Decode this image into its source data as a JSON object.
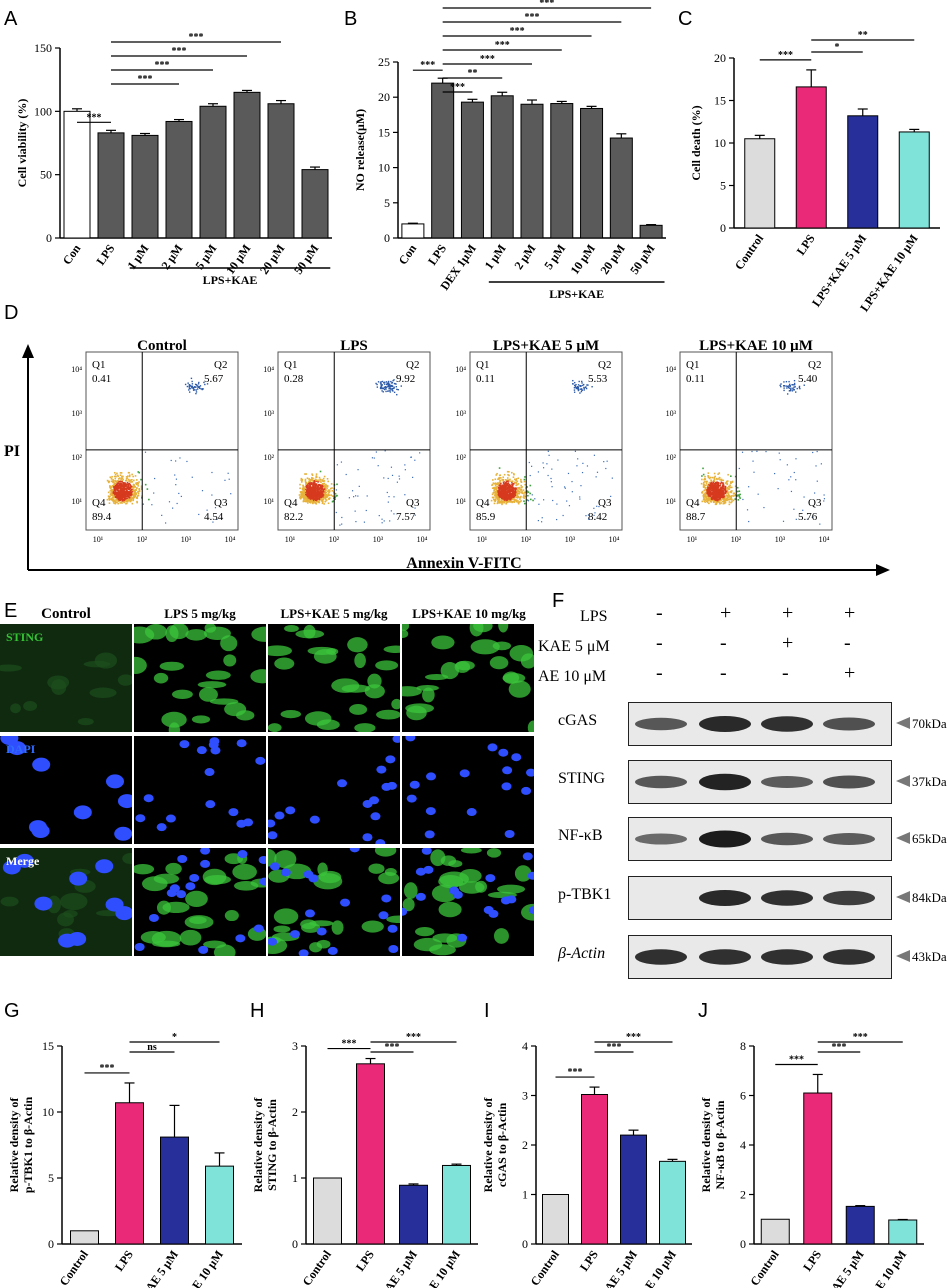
{
  "panel_letters": [
    "A",
    "B",
    "C",
    "D",
    "E",
    "F",
    "G",
    "H",
    "I",
    "J"
  ],
  "chart_data": [
    {
      "id": "A",
      "type": "bar",
      "categories": [
        "Con",
        "LPS",
        "1 μM",
        "2 μM",
        "5 μM",
        "10 μM",
        "20 μM",
        "50 μM"
      ],
      "values": [
        100,
        83,
        81,
        92,
        104,
        115,
        106,
        54
      ],
      "errors": [
        2,
        2,
        1.5,
        1.5,
        2,
        1.5,
        2.5,
        2
      ],
      "colors": [
        "#ffffff",
        "#5a5a5a",
        "#5a5a5a",
        "#5a5a5a",
        "#5a5a5a",
        "#5a5a5a",
        "#5a5a5a",
        "#5a5a5a"
      ],
      "ylabel": "Cell viability (%)",
      "ylim": [
        0,
        150
      ],
      "yticks": [
        0,
        50,
        100,
        150
      ],
      "group_label": "LPS+KAE",
      "sig": [
        {
          "from": 0,
          "to": 1,
          "label": "***"
        },
        {
          "from": 1,
          "to": 3,
          "label": "***"
        },
        {
          "from": 1,
          "to": 4,
          "label": "***"
        },
        {
          "from": 1,
          "to": 5,
          "label": "***"
        },
        {
          "from": 1,
          "to": 6,
          "label": "***"
        }
      ]
    },
    {
      "id": "B",
      "type": "bar",
      "categories": [
        "Con",
        "LPS",
        "DEX 1μM",
        "1 μM",
        "2 μM",
        "5 μM",
        "10 μM",
        "20 μM",
        "50 μM"
      ],
      "values": [
        2,
        22,
        19.3,
        20.2,
        19,
        19.1,
        18.4,
        14.2,
        1.8
      ],
      "errors": [
        0.1,
        0.7,
        0.4,
        0.5,
        0.6,
        0.3,
        0.3,
        0.6,
        0.1
      ],
      "colors": [
        "#ffffff",
        "#5a5a5a",
        "#5a5a5a",
        "#5a5a5a",
        "#5a5a5a",
        "#5a5a5a",
        "#5a5a5a",
        "#5a5a5a",
        "#5a5a5a"
      ],
      "ylabel": "NO release(μM)",
      "ylim": [
        0,
        25
      ],
      "yticks": [
        0,
        5,
        10,
        15,
        20,
        25
      ],
      "group_label": "LPS+KAE",
      "sig": [
        {
          "from": 0,
          "to": 1,
          "label": "***"
        },
        {
          "from": 1,
          "to": 2,
          "label": "***"
        },
        {
          "from": 1,
          "to": 3,
          "label": "**"
        },
        {
          "from": 1,
          "to": 4,
          "label": "***"
        },
        {
          "from": 1,
          "to": 5,
          "label": "***"
        },
        {
          "from": 1,
          "to": 6,
          "label": "***"
        },
        {
          "from": 1,
          "to": 7,
          "label": "***"
        },
        {
          "from": 1,
          "to": 8,
          "label": "***"
        }
      ]
    },
    {
      "id": "C",
      "type": "bar",
      "categories": [
        "Control",
        "LPS",
        "LPS+KAE 5 μM",
        "LPS+KAE 10 μM"
      ],
      "values": [
        10.5,
        16.6,
        13.2,
        11.3
      ],
      "errors": [
        0.4,
        2,
        0.8,
        0.3
      ],
      "colors": [
        "#dcdcdc",
        "#ea2a78",
        "#27309a",
        "#7fe3da"
      ],
      "ylabel": "Cell death (%)",
      "ylim": [
        0,
        20
      ],
      "yticks": [
        0,
        5,
        10,
        15,
        20
      ],
      "sig": [
        {
          "from": 0,
          "to": 1,
          "label": "***"
        },
        {
          "from": 1,
          "to": 2,
          "label": "*"
        },
        {
          "from": 1,
          "to": 3,
          "label": "**"
        }
      ]
    },
    {
      "id": "G",
      "type": "bar",
      "categories": [
        "Control",
        "LPS",
        "LPS+KAE 5 μM",
        "LPS+KAE 10 μM"
      ],
      "values": [
        1,
        10.7,
        8.1,
        5.9
      ],
      "errors": [
        0,
        1.5,
        2.4,
        1
      ],
      "colors": [
        "#dcdcdc",
        "#ea2a78",
        "#27309a",
        "#7fe3da"
      ],
      "ylabel": "Relative density of p-TBK1 to β-Actin",
      "ylim": [
        0,
        15
      ],
      "yticks": [
        0,
        5,
        10,
        15
      ],
      "sig": [
        {
          "from": 0,
          "to": 1,
          "label": "***"
        },
        {
          "from": 1,
          "to": 2,
          "label": "ns"
        },
        {
          "from": 1,
          "to": 3,
          "label": "*"
        }
      ]
    },
    {
      "id": "H",
      "type": "bar",
      "categories": [
        "Control",
        "LPS",
        "LPS+KAE 5 μM",
        "LPS+KAE 10 μM"
      ],
      "values": [
        1,
        2.73,
        0.89,
        1.19
      ],
      "errors": [
        0,
        0.08,
        0.02,
        0.02
      ],
      "colors": [
        "#dcdcdc",
        "#ea2a78",
        "#27309a",
        "#7fe3da"
      ],
      "ylabel": "Relative density of STING to β-Actin",
      "ylim": [
        0,
        3
      ],
      "yticks": [
        0,
        1,
        2,
        3
      ],
      "sig": [
        {
          "from": 0,
          "to": 1,
          "label": "***"
        },
        {
          "from": 1,
          "to": 2,
          "label": "***"
        },
        {
          "from": 1,
          "to": 3,
          "label": "***"
        }
      ]
    },
    {
      "id": "I",
      "type": "bar",
      "categories": [
        "Control",
        "LPS",
        "LPS+KAE 5 μM",
        "LPS+KAE 10 μM"
      ],
      "values": [
        1,
        3.02,
        2.2,
        1.67
      ],
      "errors": [
        0,
        0.15,
        0.1,
        0.04
      ],
      "colors": [
        "#dcdcdc",
        "#ea2a78",
        "#27309a",
        "#7fe3da"
      ],
      "ylabel": "Relative density of cGAS to β-Actin",
      "ylim": [
        0,
        4
      ],
      "yticks": [
        0,
        1,
        2,
        3,
        4
      ],
      "sig": [
        {
          "from": 0,
          "to": 1,
          "label": "***"
        },
        {
          "from": 1,
          "to": 2,
          "label": "***"
        },
        {
          "from": 1,
          "to": 3,
          "label": "***"
        }
      ]
    },
    {
      "id": "J",
      "type": "bar",
      "categories": [
        "Control",
        "LPS",
        "LPS+KAE 5 μM",
        "LPS+KAE 10 μM"
      ],
      "values": [
        1,
        6.1,
        1.52,
        0.97
      ],
      "errors": [
        0,
        0.75,
        0.03,
        0.02
      ],
      "colors": [
        "#dcdcdc",
        "#ea2a78",
        "#27309a",
        "#7fe3da"
      ],
      "ylabel": "Relative density of NF-κB to β-Actin",
      "ylim": [
        0,
        8
      ],
      "yticks": [
        0,
        2,
        4,
        6,
        8
      ],
      "sig": [
        {
          "from": 0,
          "to": 1,
          "label": "***"
        },
        {
          "from": 1,
          "to": 2,
          "label": "***"
        },
        {
          "from": 1,
          "to": 3,
          "label": "***"
        }
      ]
    }
  ],
  "flow": {
    "ylabel": "PI",
    "xlabel": "Annexin V-FITC",
    "xtick_labels": [
      "10¹",
      "10²",
      "10³",
      "10⁴"
    ],
    "ytick_labels": [
      "10¹",
      "10²",
      "10³",
      "10⁴"
    ],
    "plots": [
      {
        "title": "Control",
        "q1": "Q1",
        "q1v": "0.41",
        "q2": "Q2",
        "q2v": "5.67",
        "q3": "Q3",
        "q3v": "4.54",
        "q4": "Q4",
        "q4v": "89.4",
        "upper_density": 0.057,
        "lower_right_density": 0.045
      },
      {
        "title": "LPS",
        "q1": "Q1",
        "q1v": "0.28",
        "q2": "Q2",
        "q2v": "9.92",
        "q3": "Q3",
        "q3v": "7.57",
        "q4": "Q4",
        "q4v": "82.2",
        "upper_density": 0.099,
        "lower_right_density": 0.076
      },
      {
        "title": "LPS+KAE 5 μM",
        "q1": "Q1",
        "q1v": "0.11",
        "q2": "Q2",
        "q2v": "5.53",
        "q3": "Q3",
        "q3v": "8.42",
        "q4": "Q4",
        "q4v": "85.9",
        "upper_density": 0.055,
        "lower_right_density": 0.084
      },
      {
        "title": "LPS+KAE 10 μM",
        "q1": "Q1",
        "q1v": "0.11",
        "q2": "Q2",
        "q2v": "5.40",
        "q3": "Q3",
        "q3v": "5.76",
        "q4": "Q4",
        "q4v": "88.7",
        "upper_density": 0.054,
        "lower_right_density": 0.058
      }
    ]
  },
  "if": {
    "columns": [
      "Control",
      "LPS 5 mg/kg",
      "LPS+KAE 5 mg/kg",
      "LPS+KAE 10 mg/kg"
    ],
    "rows": [
      "STING",
      "DAPI",
      "Merge"
    ],
    "row_colors": [
      "#35c235",
      "#2f6bff",
      "#ffffff"
    ]
  },
  "western": {
    "conditions": [
      {
        "label": "LPS",
        "signs": [
          "-",
          "+",
          "+",
          "+"
        ]
      },
      {
        "label": "KAE 5 μM",
        "signs": [
          "-",
          "-",
          "+",
          "-"
        ]
      },
      {
        "label": "AE 10 μM",
        "signs": [
          "-",
          "-",
          "-",
          "+"
        ]
      }
    ],
    "bands": [
      {
        "name": "cGAS",
        "kda": "70kDa",
        "intensity": [
          0.55,
          0.9,
          0.85,
          0.6
        ]
      },
      {
        "name": "STING",
        "kda": "37kDa",
        "intensity": [
          0.55,
          0.95,
          0.5,
          0.6
        ]
      },
      {
        "name": "NF-κB",
        "kda": "65kDa",
        "intensity": [
          0.4,
          1.0,
          0.55,
          0.5
        ]
      },
      {
        "name": "p-TBK1",
        "kda": "84kDa",
        "intensity": [
          0.0,
          0.9,
          0.85,
          0.75
        ]
      },
      {
        "name": "β-Actin",
        "kda": "43kDa",
        "intensity": [
          0.85,
          0.85,
          0.85,
          0.85
        ]
      }
    ]
  }
}
